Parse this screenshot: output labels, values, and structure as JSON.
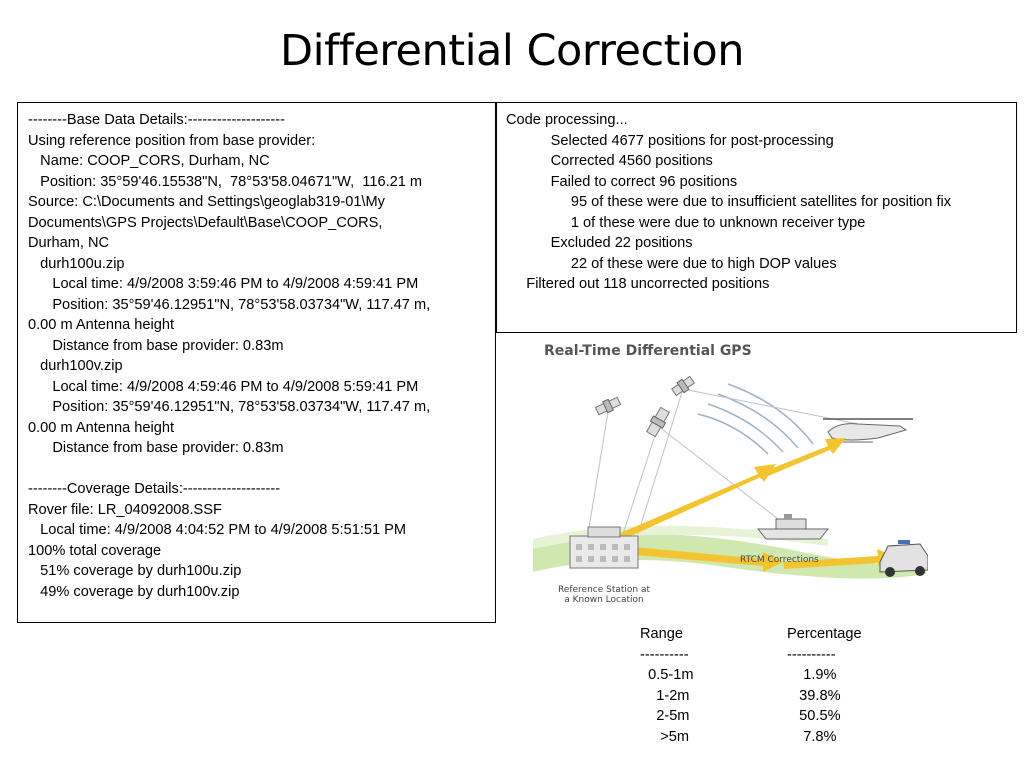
{
  "title": "Differential Correction",
  "base_box": {
    "lines": [
      "--------Base Data Details:--------------------",
      "Using reference position from base provider:",
      "   Name: COOP_CORS, Durham, NC",
      "   Position: 35°59'46.15538\"N,  78°53'58.04671\"W,  116.21 m",
      "Source: C:\\Documents and Settings\\geoglab319-01\\My",
      "Documents\\GPS Projects\\Default\\Base\\COOP_CORS,",
      "Durham, NC",
      "   durh100u.zip",
      "      Local time: 4/9/2008 3:59:46 PM to 4/9/2008 4:59:41 PM",
      "      Position: 35°59'46.12951\"N, 78°53'58.03734\"W, 117.47 m,",
      "0.00 m Antenna height",
      "      Distance from base provider: 0.83m",
      "   durh100v.zip",
      "      Local time: 4/9/2008 4:59:46 PM to 4/9/2008 5:59:41 PM",
      "      Position: 35°59'46.12951\"N, 78°53'58.03734\"W, 117.47 m,",
      "0.00 m Antenna height",
      "      Distance from base provider: 0.83m",
      "",
      "--------Coverage Details:--------------------",
      "Rover file: LR_04092008.SSF",
      "   Local time: 4/9/2008 4:04:52 PM to 4/9/2008 5:51:51 PM",
      "100% total coverage",
      "   51% coverage by durh100u.zip",
      "   49% coverage by durh100v.zip"
    ]
  },
  "code_box": {
    "lines": [
      "Code processing...",
      "           Selected 4677 positions for post-processing",
      "           Corrected 4560 positions",
      "           Failed to correct 96 positions",
      "                95 of these were due to insufficient satellites for position fix",
      "                1 of these were due to unknown receiver type",
      "           Excluded 22 positions",
      "                22 of these were due to high DOP values",
      "     Filtered out 118 uncorrected positions"
    ]
  },
  "figure": {
    "title": "Real-Time Differential GPS",
    "rtcm_label": "RTCM Corrections",
    "station_label_1": "Reference Station at",
    "station_label_2": "a Known Location"
  },
  "range_table": {
    "headers": [
      "Range",
      "Percentage"
    ],
    "separator": [
      "----------",
      "----------"
    ],
    "rows": [
      [
        "  0.5-1m",
        "    1.9%"
      ],
      [
        "    1-2m",
        "   39.8%"
      ],
      [
        "    2-5m",
        "   50.5%"
      ],
      [
        "     >5m",
        "    7.8%"
      ]
    ]
  }
}
